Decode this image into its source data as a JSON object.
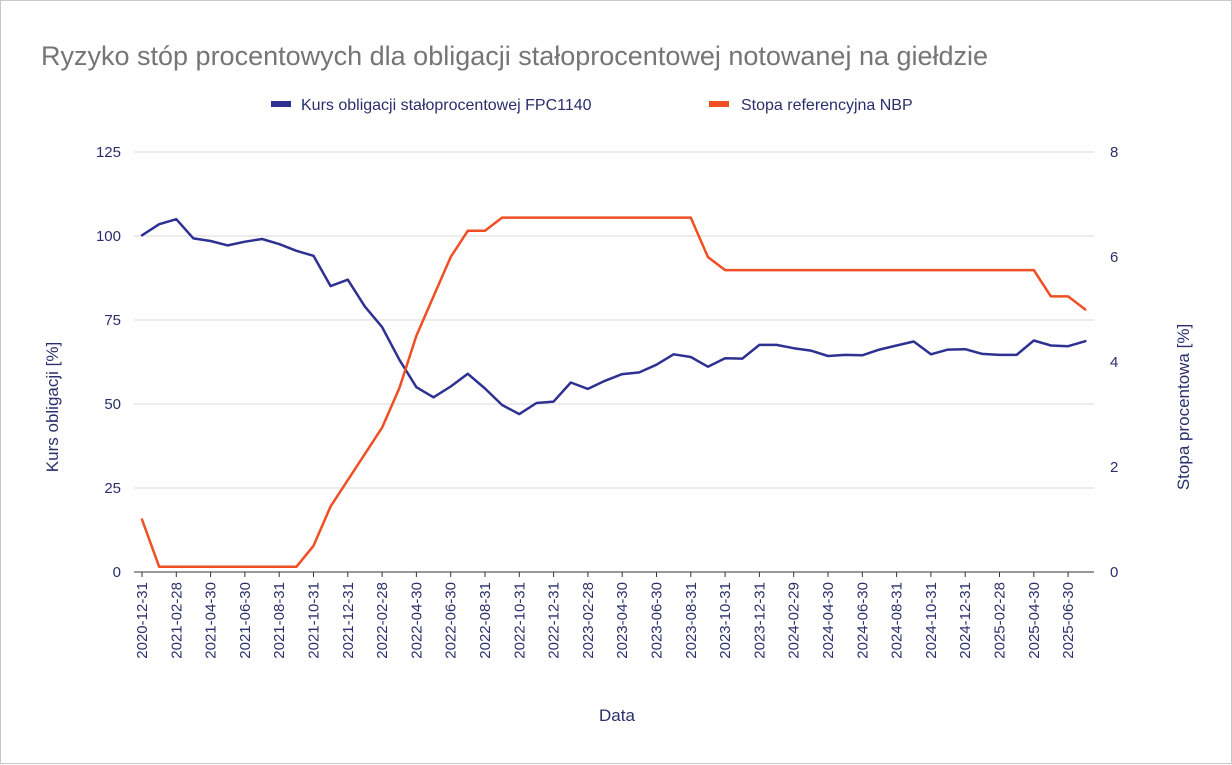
{
  "chart_data": {
    "type": "line",
    "title": "Ryzyko stóp procentowych dla obligacji stałoprocentowej notowanej na giełdzie",
    "xlabel": "Data",
    "ylabel_left": "Kurs obligacji [%]",
    "ylabel_right": "Stopa procentowa [%]",
    "ylim_left": [
      0,
      125
    ],
    "ylim_right": [
      0,
      8
    ],
    "yticks_left": [
      "0",
      "25",
      "50",
      "75",
      "100",
      "125"
    ],
    "yticks_right": [
      "0",
      "2",
      "4",
      "6",
      "8"
    ],
    "grid": true,
    "legend_position": "top",
    "colors": {
      "bond": "#2e3192",
      "rate": "#f04e23",
      "title": "#757575",
      "text": "#2a2f6b"
    },
    "x": [
      "2020-12-31",
      "2021-01-31",
      "2021-02-28",
      "2021-03-31",
      "2021-04-30",
      "2021-05-31",
      "2021-06-30",
      "2021-07-31",
      "2021-08-31",
      "2021-09-30",
      "2021-10-31",
      "2021-11-30",
      "2021-12-31",
      "2022-01-31",
      "2022-02-28",
      "2022-03-31",
      "2022-04-30",
      "2022-05-31",
      "2022-06-30",
      "2022-07-31",
      "2022-08-31",
      "2022-09-30",
      "2022-10-31",
      "2022-11-30",
      "2022-12-31",
      "2023-01-31",
      "2023-02-28",
      "2023-03-31",
      "2023-04-30",
      "2023-05-31",
      "2023-06-30",
      "2023-07-31",
      "2023-08-31",
      "2023-09-30",
      "2023-10-31",
      "2023-11-30",
      "2023-12-31",
      "2024-01-31",
      "2024-02-29",
      "2024-03-31",
      "2024-04-30",
      "2024-05-31",
      "2024-06-30",
      "2024-07-31",
      "2024-08-31",
      "2024-09-30",
      "2024-10-31",
      "2024-11-30",
      "2024-12-31",
      "2025-01-31",
      "2025-02-28",
      "2025-03-31",
      "2025-04-30",
      "2025-05-31",
      "2025-06-30",
      "2025-07-31"
    ],
    "x_tick_labels": [
      "2020-12-31",
      "2021-02-28",
      "2021-04-30",
      "2021-06-30",
      "2021-08-31",
      "2021-10-31",
      "2021-12-31",
      "2022-02-28",
      "2022-04-30",
      "2022-06-30",
      "2022-08-31",
      "2022-10-31",
      "2022-12-31",
      "2023-02-28",
      "2023-04-30",
      "2023-06-30",
      "2023-08-31",
      "2023-10-31",
      "2023-12-31",
      "2024-02-29",
      "2024-04-30",
      "2024-06-30",
      "2024-08-31",
      "2024-10-31",
      "2024-12-31",
      "2025-02-28",
      "2025-04-30",
      "2025-06-30"
    ],
    "series": [
      {
        "name": "Kurs obligacji stałoprocentowej FPC1140",
        "axis": "left",
        "color": "#2e3192",
        "values": [
          100.2,
          103.5,
          105.0,
          99.3,
          98.5,
          97.2,
          98.3,
          99.1,
          97.6,
          95.6,
          94.1,
          85.1,
          87.0,
          79.0,
          72.9,
          63.2,
          55.0,
          52.0,
          55.2,
          59.0,
          54.6,
          49.7,
          47.0,
          50.3,
          50.7,
          56.4,
          54.5,
          56.9,
          58.9,
          59.4,
          61.7,
          64.8,
          64.0,
          61.1,
          63.6,
          63.5,
          67.6,
          67.6,
          66.6,
          65.9,
          64.3,
          64.6,
          64.5,
          66.2,
          67.4,
          68.6,
          64.8,
          66.2,
          66.3,
          64.9,
          64.6,
          64.6,
          68.9,
          67.4,
          67.2,
          68.7
        ]
      },
      {
        "name": "Stopa referencyjna NBP",
        "axis": "right",
        "color": "#f04e23",
        "values": [
          1.0,
          0.1,
          0.1,
          0.1,
          0.1,
          0.1,
          0.1,
          0.1,
          0.1,
          0.1,
          0.5,
          1.25,
          1.75,
          2.25,
          2.75,
          3.5,
          4.5,
          5.25,
          6.0,
          6.5,
          6.5,
          6.75,
          6.75,
          6.75,
          6.75,
          6.75,
          6.75,
          6.75,
          6.75,
          6.75,
          6.75,
          6.75,
          6.75,
          6.0,
          5.75,
          5.75,
          5.75,
          5.75,
          5.75,
          5.75,
          5.75,
          5.75,
          5.75,
          5.75,
          5.75,
          5.75,
          5.75,
          5.75,
          5.75,
          5.75,
          5.75,
          5.75,
          5.75,
          5.25,
          5.25,
          5.0
        ]
      }
    ]
  }
}
